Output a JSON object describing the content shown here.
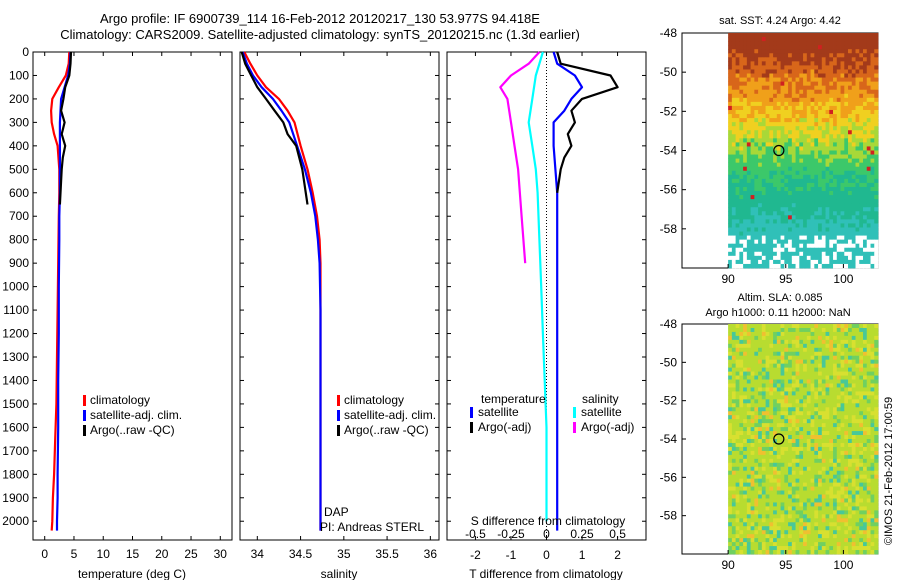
{
  "header": {
    "title_line1": "Argo profile: IF 6900739_114 16-Feb-2012 20120217_130 53.977S 94.418E",
    "title_line2": "Climatology: CARS2009. Satellite-adjusted climatology: synTS_20120215.nc (1.3d earlier)"
  },
  "colors": {
    "climatology": "#ff0000",
    "satellite": "#0000ff",
    "argo": "#000000",
    "sat_diff_salinity": "#00ffff",
    "argo_diff_salinity": "#ff00ff"
  },
  "chart_data": [
    {
      "id": "temperature",
      "type": "line",
      "xlabel": "temperature (deg C)",
      "ylabel": "",
      "xlim": [
        -2,
        32
      ],
      "ylim": [
        2080,
        0
      ],
      "xticks": [
        0,
        5,
        10,
        15,
        20,
        25,
        30
      ],
      "yticks": [
        0,
        100,
        200,
        300,
        400,
        500,
        600,
        700,
        800,
        900,
        1000,
        1100,
        1200,
        1300,
        1400,
        1500,
        1600,
        1700,
        1800,
        1900,
        2000
      ],
      "legend": [
        "climatology",
        "satellite-adj. clim.",
        "Argo(..raw -QC)"
      ],
      "legend_position": "lower-center",
      "series": [
        {
          "name": "climatology",
          "color": "#ff0000",
          "x": [
            4.2,
            4.1,
            3.6,
            2.4,
            1.3,
            1.1,
            1.2,
            1.6,
            2.2,
            2.5,
            2.5,
            2.4,
            2.3,
            2.2,
            2.1,
            2.0,
            1.8,
            1.6,
            1.4,
            1.3,
            1.2
          ],
          "y": [
            0,
            50,
            100,
            150,
            200,
            250,
            300,
            350,
            400,
            500,
            600,
            700,
            900,
            1100,
            1300,
            1500,
            1650,
            1800,
            1900,
            2000,
            2040
          ]
        },
        {
          "name": "satellite-adj. clim.",
          "color": "#0000ff",
          "x": [
            4.4,
            4.3,
            4.0,
            3.4,
            2.8,
            2.7,
            2.6,
            2.6,
            2.6,
            2.6,
            2.5,
            2.5,
            2.4,
            2.4,
            2.3,
            2.3,
            2.2,
            2.2,
            2.1,
            2.1
          ],
          "y": [
            0,
            50,
            100,
            150,
            200,
            250,
            300,
            400,
            500,
            600,
            700,
            800,
            1000,
            1200,
            1400,
            1600,
            1800,
            1900,
            2000,
            2040
          ]
        },
        {
          "name": "Argo(..raw -QC)",
          "color": "#000000",
          "x": [
            4.5,
            4.4,
            4.2,
            3.5,
            3.2,
            2.8,
            3.4,
            2.9,
            3.5,
            3.1,
            2.9,
            2.8,
            2.7,
            2.6
          ],
          "y": [
            0,
            50,
            100,
            150,
            200,
            250,
            300,
            350,
            400,
            450,
            500,
            550,
            600,
            650
          ]
        }
      ]
    },
    {
      "id": "salinity",
      "type": "line",
      "xlabel": "salinity",
      "ylabel": "",
      "xlim": [
        33.8,
        36.1
      ],
      "ylim": [
        2080,
        0
      ],
      "xticks": [
        34,
        34.5,
        35,
        35.5,
        36
      ],
      "legend": [
        "climatology",
        "satellite-adj. clim.",
        "Argo(..raw -QC)"
      ],
      "legend_position": "lower-center",
      "annotations": [
        "DAP",
        "PI: Andreas STERL"
      ],
      "series": [
        {
          "name": "climatology",
          "color": "#ff0000",
          "x": [
            33.85,
            33.92,
            34.0,
            34.1,
            34.25,
            34.35,
            34.43,
            34.5,
            34.58,
            34.64,
            34.69,
            34.72,
            34.73,
            34.73,
            34.73,
            34.73,
            34.73,
            34.73
          ],
          "y": [
            0,
            50,
            100,
            150,
            200,
            250,
            300,
            400,
            500,
            600,
            700,
            800,
            900,
            1100,
            1400,
            1700,
            2000,
            2040
          ]
        },
        {
          "name": "satellite-adj. clim.",
          "color": "#0000ff",
          "x": [
            33.83,
            33.88,
            33.95,
            34.05,
            34.18,
            34.28,
            34.37,
            34.46,
            34.55,
            34.62,
            34.67,
            34.7,
            34.72,
            34.73,
            34.73,
            34.73,
            34.73,
            34.73
          ],
          "y": [
            0,
            50,
            100,
            150,
            200,
            250,
            300,
            400,
            500,
            600,
            700,
            800,
            900,
            1100,
            1400,
            1700,
            2000,
            2040
          ]
        },
        {
          "name": "Argo(..raw -QC)",
          "color": "#000000",
          "x": [
            33.82,
            33.86,
            33.93,
            34.0,
            34.1,
            34.2,
            34.3,
            34.35,
            34.45,
            34.52,
            34.58
          ],
          "y": [
            0,
            50,
            100,
            150,
            200,
            250,
            300,
            350,
            400,
            500,
            650
          ]
        }
      ]
    },
    {
      "id": "difference",
      "type": "line",
      "xlabel": "T difference from climatology",
      "x2label": "S difference from climatology",
      "ylabel": "",
      "xlim": [
        -2.8,
        2.8
      ],
      "ylim": [
        2080,
        0
      ],
      "xticks": [
        -2,
        -1,
        0,
        1,
        2
      ],
      "x2ticks_labels": [
        "-0.5",
        "-0.25",
        "0",
        "0.25",
        "0.5"
      ],
      "x2ticks_positions": [
        -2,
        -1,
        0,
        1,
        2
      ],
      "legend_titles": [
        "temperature",
        "salinity"
      ],
      "legend": [
        "satellite",
        "Argo(-adj)",
        "satellite",
        "Argo(-adj)"
      ],
      "legend_position": "lower-center",
      "series": [
        {
          "name": "satellite",
          "color": "#0000ff",
          "x": [
            0.2,
            0.3,
            0.8,
            1.0,
            0.7,
            0.5,
            0.2,
            0.2,
            0.3,
            0.3,
            0.3,
            0.3,
            0.3,
            0.3,
            0.3,
            0.3,
            0.3
          ],
          "y": [
            0,
            50,
            100,
            150,
            200,
            250,
            300,
            400,
            600,
            800,
            1000,
            1200,
            1400,
            1600,
            1800,
            2000,
            2040
          ]
        },
        {
          "name": "Argo(-adj)",
          "color": "#000000",
          "x": [
            0.3,
            0.4,
            1.8,
            2.0,
            1.0,
            0.7,
            0.8,
            0.6,
            0.7,
            0.5,
            0.4,
            0.3
          ],
          "y": [
            0,
            50,
            100,
            150,
            200,
            250,
            300,
            350,
            400,
            450,
            500,
            600
          ]
        },
        {
          "name": "satellite",
          "color": "#00ffff",
          "x": [
            -0.1,
            -0.2,
            -0.3,
            -0.4,
            -0.5,
            -0.4,
            -0.3,
            -0.25,
            -0.2,
            -0.15,
            -0.1,
            -0.05,
            0,
            0,
            0
          ],
          "y": [
            0,
            50,
            100,
            200,
            300,
            400,
            500,
            600,
            800,
            1000,
            1200,
            1400,
            1600,
            1800,
            2000
          ]
        },
        {
          "name": "Argo(-adj)",
          "color": "#ff00ff",
          "x": [
            -0.2,
            -0.5,
            -1.0,
            -1.3,
            -1.1,
            -1.0,
            -0.9,
            -0.8,
            -0.7,
            -0.6
          ],
          "y": [
            0,
            50,
            100,
            150,
            200,
            300,
            400,
            500,
            700,
            900
          ]
        }
      ]
    },
    {
      "id": "sst-map",
      "type": "heatmap",
      "title": "sat. SST: 4.24  Argo: 4.42",
      "xlim": [
        86,
        103
      ],
      "ylim": [
        -60,
        -48
      ],
      "xticks": [
        90,
        95,
        100
      ],
      "yticks": [
        -48,
        -50,
        -52,
        -54,
        -56,
        -58
      ],
      "marker": {
        "lon": 94.4,
        "lat": -54.0
      }
    },
    {
      "id": "sla-map",
      "type": "heatmap",
      "title": "Altim. SLA: 0.085",
      "subtitle": "Argo h1000: 0.11  h2000: NaN",
      "xlim": [
        86,
        103
      ],
      "ylim": [
        -60,
        -48
      ],
      "xticks": [
        90,
        95,
        100
      ],
      "yticks": [
        -48,
        -50,
        -52,
        -54,
        -56,
        -58
      ],
      "marker": {
        "lon": 94.4,
        "lat": -54.0
      }
    }
  ],
  "side_note": "©IMOS 21-Feb-2012 17:00:59"
}
